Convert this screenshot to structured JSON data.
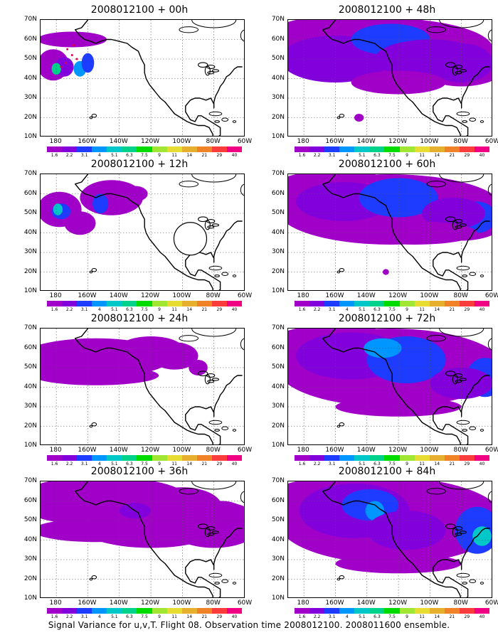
{
  "caption": "Signal Variance for u,v,T. Flight 08. Observation time 2008012100. 2008011600 ensemble.",
  "colorbar": {
    "labels": [
      "1.6",
      "2.2",
      "3.1",
      "4",
      "5.1",
      "6.3",
      "7.5",
      "9",
      "11",
      "14",
      "21",
      "29",
      "40"
    ],
    "colors": [
      "#a000c8",
      "#8200dc",
      "#1e3cff",
      "#0096ff",
      "#00c8c8",
      "#00d28c",
      "#00dc00",
      "#a0e632",
      "#e6dc32",
      "#e6af2d",
      "#f08228",
      "#fa3c3c",
      "#f00082"
    ]
  },
  "axes": {
    "y_labels": [
      "70N",
      "60N",
      "50N",
      "40N",
      "30N",
      "20N",
      "10N"
    ],
    "x_labels": [
      "180",
      "160W",
      "140W",
      "120W",
      "100W",
      "80W",
      "60W"
    ]
  },
  "panels": [
    {
      "title": "2008012100 + 00h",
      "level": 0
    },
    {
      "title": "2008012100 + 48h",
      "level": 4
    },
    {
      "title": "2008012100 + 12h",
      "level": 1
    },
    {
      "title": "2008012100 + 60h",
      "level": 5
    },
    {
      "title": "2008012100 + 24h",
      "level": 2
    },
    {
      "title": "2008012100 + 72h",
      "level": 6
    },
    {
      "title": "2008012100 + 36h",
      "level": 3
    },
    {
      "title": "2008012100 + 84h",
      "level": 7
    }
  ]
}
